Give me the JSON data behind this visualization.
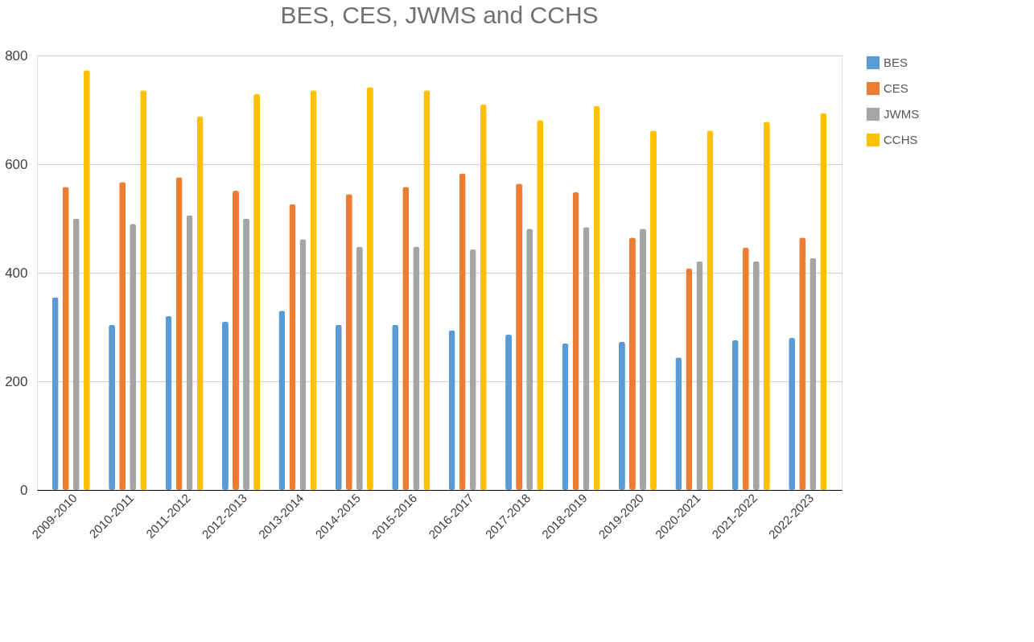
{
  "chart_data": {
    "type": "bar",
    "title": "BES, CES, JWMS and CCHS",
    "categories": [
      "2009-2010",
      "2010-2011",
      "2011-2012",
      "2012-2013",
      "2013-2014",
      "2014-2015",
      "2015-2016",
      "2016-2017",
      "2017-2018",
      "2018-2019",
      "2019-2020",
      "2020-2021",
      "2021-2022",
      "2022-2023"
    ],
    "series": [
      {
        "name": "BES",
        "color": "#5b9bd5",
        "values": [
          355,
          304,
          320,
          310,
          330,
          304,
          304,
          294,
          286,
          270,
          273,
          244,
          276,
          280
        ]
      },
      {
        "name": "CES",
        "color": "#ed7d31",
        "values": [
          558,
          567,
          576,
          551,
          526,
          545,
          558,
          583,
          564,
          548,
          465,
          408,
          446,
          465
        ]
      },
      {
        "name": "JWMS",
        "color": "#a5a5a5",
        "values": [
          500,
          490,
          506,
          500,
          462,
          448,
          448,
          443,
          481,
          484,
          481,
          421,
          421,
          427
        ]
      },
      {
        "name": "CCHS",
        "color": "#ffc000",
        "values": [
          773,
          736,
          688,
          729,
          736,
          742,
          736,
          710,
          681,
          707,
          662,
          662,
          678,
          694
        ]
      }
    ],
    "ylim": [
      0,
      800
    ],
    "yticks": [
      0,
      200,
      400,
      600,
      800
    ],
    "grid": "y",
    "legend": "top right"
  }
}
